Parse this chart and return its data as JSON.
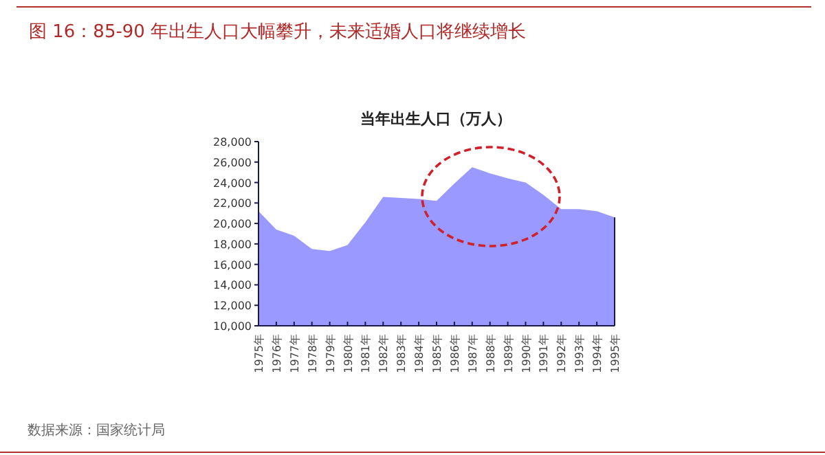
{
  "chart_data": {
    "type": "area",
    "title": "图 16：85-90 年出生人口大幅攀升，未来适婚人口将继续增长",
    "subtitle": "当年出生人口（万人）",
    "categories": [
      "1975年",
      "1976年",
      "1977年",
      "1978年",
      "1979年",
      "1980年",
      "1981年",
      "1982年",
      "1983年",
      "1984年",
      "1985年",
      "1986年",
      "1987年",
      "1988年",
      "1989年",
      "1990年",
      "1991年",
      "1992年",
      "1993年",
      "1994年",
      "1995年"
    ],
    "series": [
      {
        "color": "#9999ff",
        "values": [
          21200,
          19400,
          18800,
          17500,
          17300,
          17900,
          20100,
          22600,
          22500,
          22400,
          22200,
          23900,
          25500,
          24900,
          24400,
          24000,
          22800,
          21400,
          21400,
          21200,
          20600
        ]
      }
    ],
    "ylim": [
      10000,
      28000
    ],
    "yticks": [
      {
        "value": 10000,
        "label": "10,000"
      },
      {
        "value": 12000,
        "label": "12,000"
      },
      {
        "value": 14000,
        "label": "14,000"
      },
      {
        "value": 16000,
        "label": "16,000"
      },
      {
        "value": 18000,
        "label": "18,000"
      },
      {
        "value": 20000,
        "label": "20,000"
      },
      {
        "value": 22000,
        "label": "22,000"
      },
      {
        "value": 24000,
        "label": "24,000"
      },
      {
        "value": 26000,
        "label": "26,000"
      },
      {
        "value": 28000,
        "label": "28,000"
      }
    ],
    "annotations": [
      "数据来源：国家统计局"
    ]
  }
}
